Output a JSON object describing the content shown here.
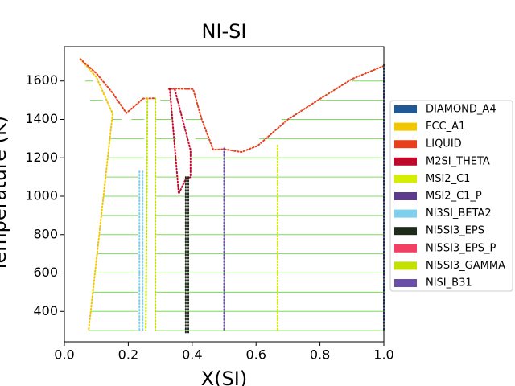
{
  "chart_data": {
    "type": "phase_diagram",
    "title": "NI-SI",
    "x_label": "X(SI)",
    "y_label": "Temperature (K)",
    "xlim": [
      0,
      1
    ],
    "ylim": [
      242,
      1779
    ],
    "xticks": [
      {
        "value": 0,
        "label": "0.0"
      },
      0.2,
      0.4,
      0.6,
      0.8,
      {
        "value": 1,
        "label": "1.0"
      }
    ],
    "yticks": [
      400,
      600,
      800,
      1000,
      1200,
      1400,
      1600
    ],
    "tie_lines": {
      "color": "#7ddc5c",
      "segments": [
        {
          "y": 300,
          "x": [
            [
              0.076,
              0.23
            ],
            [
              0.285,
              0.38
            ],
            [
              0.39,
              0.5
            ],
            [
              0.5,
              0.667
            ],
            [
              0.667,
              1.0
            ]
          ]
        },
        {
          "y": 400,
          "x": [
            [
              0.082,
              0.23
            ],
            [
              0.285,
              0.38
            ],
            [
              0.39,
              0.5
            ],
            [
              0.5,
              0.667
            ],
            [
              0.667,
              1.0
            ]
          ]
        },
        {
          "y": 500,
          "x": [
            [
              0.089,
              0.23
            ],
            [
              0.285,
              0.38
            ],
            [
              0.39,
              0.5
            ],
            [
              0.5,
              0.667
            ],
            [
              0.667,
              1.0
            ]
          ]
        },
        {
          "y": 600,
          "x": [
            [
              0.096,
              0.23
            ],
            [
              0.285,
              0.38
            ],
            [
              0.39,
              0.5
            ],
            [
              0.5,
              0.667
            ],
            [
              0.667,
              1.0
            ]
          ]
        },
        {
          "y": 700,
          "x": [
            [
              0.102,
              0.23
            ],
            [
              0.285,
              0.38
            ],
            [
              0.39,
              0.5
            ],
            [
              0.5,
              0.667
            ],
            [
              0.667,
              1.0
            ]
          ]
        },
        {
          "y": 800,
          "x": [
            [
              0.109,
              0.23
            ],
            [
              0.285,
              0.38
            ],
            [
              0.39,
              0.5
            ],
            [
              0.5,
              0.667
            ],
            [
              0.667,
              1.0
            ]
          ]
        },
        {
          "y": 900,
          "x": [
            [
              0.116,
              0.23
            ],
            [
              0.285,
              0.38
            ],
            [
              0.39,
              0.5
            ],
            [
              0.5,
              0.667
            ],
            [
              0.667,
              1.0
            ]
          ]
        },
        {
          "y": 1000,
          "x": [
            [
              0.122,
              0.23
            ],
            [
              0.285,
              0.38
            ],
            [
              0.39,
              0.5
            ],
            [
              0.5,
              0.667
            ],
            [
              0.667,
              1.0
            ]
          ]
        },
        {
          "y": 1100,
          "x": [
            [
              0.129,
              0.23
            ],
            [
              0.285,
              0.36
            ],
            [
              0.4,
              0.5
            ],
            [
              0.5,
              0.667
            ],
            [
              0.667,
              1.0
            ]
          ]
        },
        {
          "y": 1200,
          "x": [
            [
              0.136,
              0.25
            ],
            [
              0.285,
              0.36
            ],
            [
              0.4,
              0.5
            ],
            [
              0.5,
              0.667
            ],
            [
              0.667,
              1.0
            ]
          ]
        },
        {
          "y": 1300,
          "x": [
            [
              0.142,
              0.25
            ],
            [
              0.285,
              0.35
            ],
            [
              0.41,
              0.45
            ],
            [
              0.61,
              1.0
            ]
          ]
        },
        {
          "y": 1400,
          "x": [
            [
              0.149,
              0.18
            ],
            [
              0.21,
              0.25
            ],
            [
              0.285,
              0.34
            ],
            [
              0.38,
              0.43
            ],
            [
              0.68,
              1.0
            ]
          ]
        },
        {
          "y": 1500,
          "x": [
            [
              0.08,
              0.12
            ],
            [
              0.3,
              0.33
            ],
            [
              0.8,
              1.0
            ]
          ]
        },
        {
          "y": 1600,
          "x": [
            [
              0.065,
              0.09
            ],
            [
              0.9,
              1.0
            ]
          ]
        }
      ]
    },
    "series": [
      {
        "name": "DIAMOND_A4",
        "color": "#1f5a96",
        "x": [
          1.0,
          1.0
        ],
        "y": [
          1685,
          300
        ]
      },
      {
        "name": "FCC_A1",
        "color": "#f2c700",
        "x": [
          0.05,
          0.1,
          0.151,
          0.076
        ],
        "y": [
          1715,
          1620,
          1430,
          304
        ]
      },
      {
        "name": "LIQUID",
        "color": "#e8401c",
        "x": [
          0.05,
          0.1,
          0.15,
          0.194,
          0.22,
          0.247,
          0.28,
          null,
          0.327,
          0.35,
          0.403,
          0.43,
          0.466,
          0.5,
          0.554,
          0.605,
          0.7,
          0.806,
          0.9,
          1.0
        ],
        "y": [
          1715,
          1640,
          1540,
          1433,
          1470,
          1509,
          1510,
          null,
          1558,
          1560,
          1558,
          1400,
          1242,
          1245,
          1230,
          1263,
          1400,
          1513,
          1610,
          1679
        ]
      },
      {
        "name": "M2SI_THETA",
        "color": "#c0092a",
        "x": [
          0.33,
          0.358,
          0.38,
          0.395,
          0.395,
          0.37,
          0.345
        ],
        "y": [
          1560,
          1013,
          1090,
          1100,
          1240,
          1400,
          1560
        ]
      },
      {
        "name": "MSI2_C1",
        "color": "#d5ee00",
        "x": [
          0.667,
          0.667
        ],
        "y": [
          1265,
          300
        ]
      },
      {
        "name": "MSI2_C1_P",
        "color": "#5b3b8a",
        "x": [],
        "y": []
      },
      {
        "name": "NI3SI_BETA2",
        "color": "#7fcfec",
        "x": [
          0.235,
          0.235,
          null,
          0.245,
          0.245
        ],
        "y": [
          1130,
          300,
          null,
          1130,
          300
        ]
      },
      {
        "name": "NI5SI3_EPS",
        "color": "#1d2b18",
        "x": [
          0.38,
          0.38,
          null,
          0.388,
          0.388
        ],
        "y": [
          1100,
          290,
          null,
          1100,
          290
        ]
      },
      {
        "name": "NI5SI3_EPS_P",
        "color": "#f43f64",
        "x": [],
        "y": []
      },
      {
        "name": "NI5SI3_GAMMA",
        "color": "#c3e000",
        "x": [
          0.26,
          0.255,
          null,
          0.285,
          0.285
        ],
        "y": [
          1510,
          300,
          null,
          1510,
          300
        ]
      },
      {
        "name": "NISI_B31",
        "color": "#6b4ea8",
        "x": [
          0.5,
          0.5
        ],
        "y": [
          1250,
          300
        ]
      }
    ]
  }
}
